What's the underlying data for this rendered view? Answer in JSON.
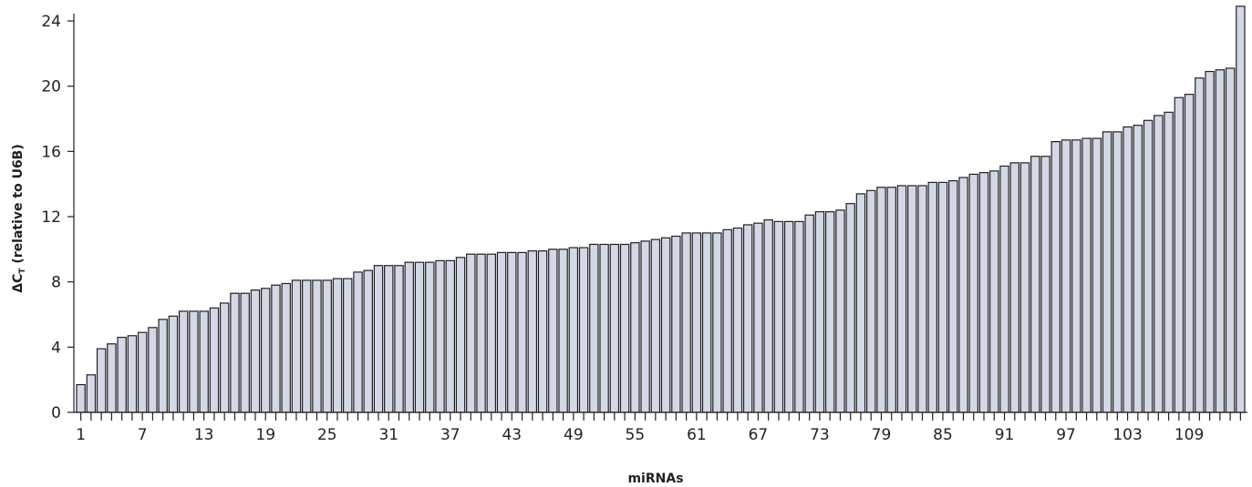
{
  "chart_data": {
    "type": "bar",
    "title": "",
    "xlabel": "miRNAs",
    "ylabel_main": "ΔC",
    "ylabel_subscript": "T",
    "ylabel_rest": " (relative to U6B)",
    "ylim": [
      0,
      24
    ],
    "yticks": [
      "0",
      "4",
      "8",
      "12",
      "16",
      "20",
      "24"
    ],
    "xticks": [
      "1",
      "7",
      "13",
      "19",
      "25",
      "31",
      "37",
      "43",
      "49",
      "55",
      "61",
      "67",
      "73",
      "79",
      "85",
      "91",
      "97",
      "103",
      "109"
    ],
    "grid": false,
    "legend": "none",
    "bar_color": "#d3d8e6",
    "edge_color": "#231f20",
    "values": [
      1.7,
      2.3,
      3.9,
      4.2,
      4.6,
      4.7,
      4.9,
      5.2,
      5.7,
      5.9,
      6.2,
      6.2,
      6.2,
      6.4,
      6.7,
      7.3,
      7.3,
      7.5,
      7.6,
      7.8,
      7.9,
      8.1,
      8.1,
      8.1,
      8.1,
      8.2,
      8.2,
      8.6,
      8.7,
      9.0,
      9.0,
      9.0,
      9.2,
      9.2,
      9.2,
      9.3,
      9.3,
      9.5,
      9.7,
      9.7,
      9.7,
      9.8,
      9.8,
      9.8,
      9.9,
      9.9,
      10.0,
      10.0,
      10.1,
      10.1,
      10.3,
      10.3,
      10.3,
      10.3,
      10.4,
      10.5,
      10.6,
      10.7,
      10.8,
      11.0,
      11.0,
      11.0,
      11.0,
      11.2,
      11.3,
      11.5,
      11.6,
      11.8,
      11.7,
      11.7,
      11.7,
      12.1,
      12.3,
      12.3,
      12.4,
      12.8,
      13.4,
      13.6,
      13.8,
      13.8,
      13.9,
      13.9,
      13.9,
      14.1,
      14.1,
      14.2,
      14.4,
      14.6,
      14.7,
      14.8,
      15.1,
      15.3,
      15.3,
      15.7,
      15.7,
      16.6,
      16.7,
      16.7,
      16.8,
      16.8,
      17.2,
      17.2,
      17.5,
      17.6,
      17.9,
      18.2,
      18.4,
      19.3,
      19.5,
      20.5,
      20.9,
      21.0,
      21.1,
      24.9
    ]
  }
}
